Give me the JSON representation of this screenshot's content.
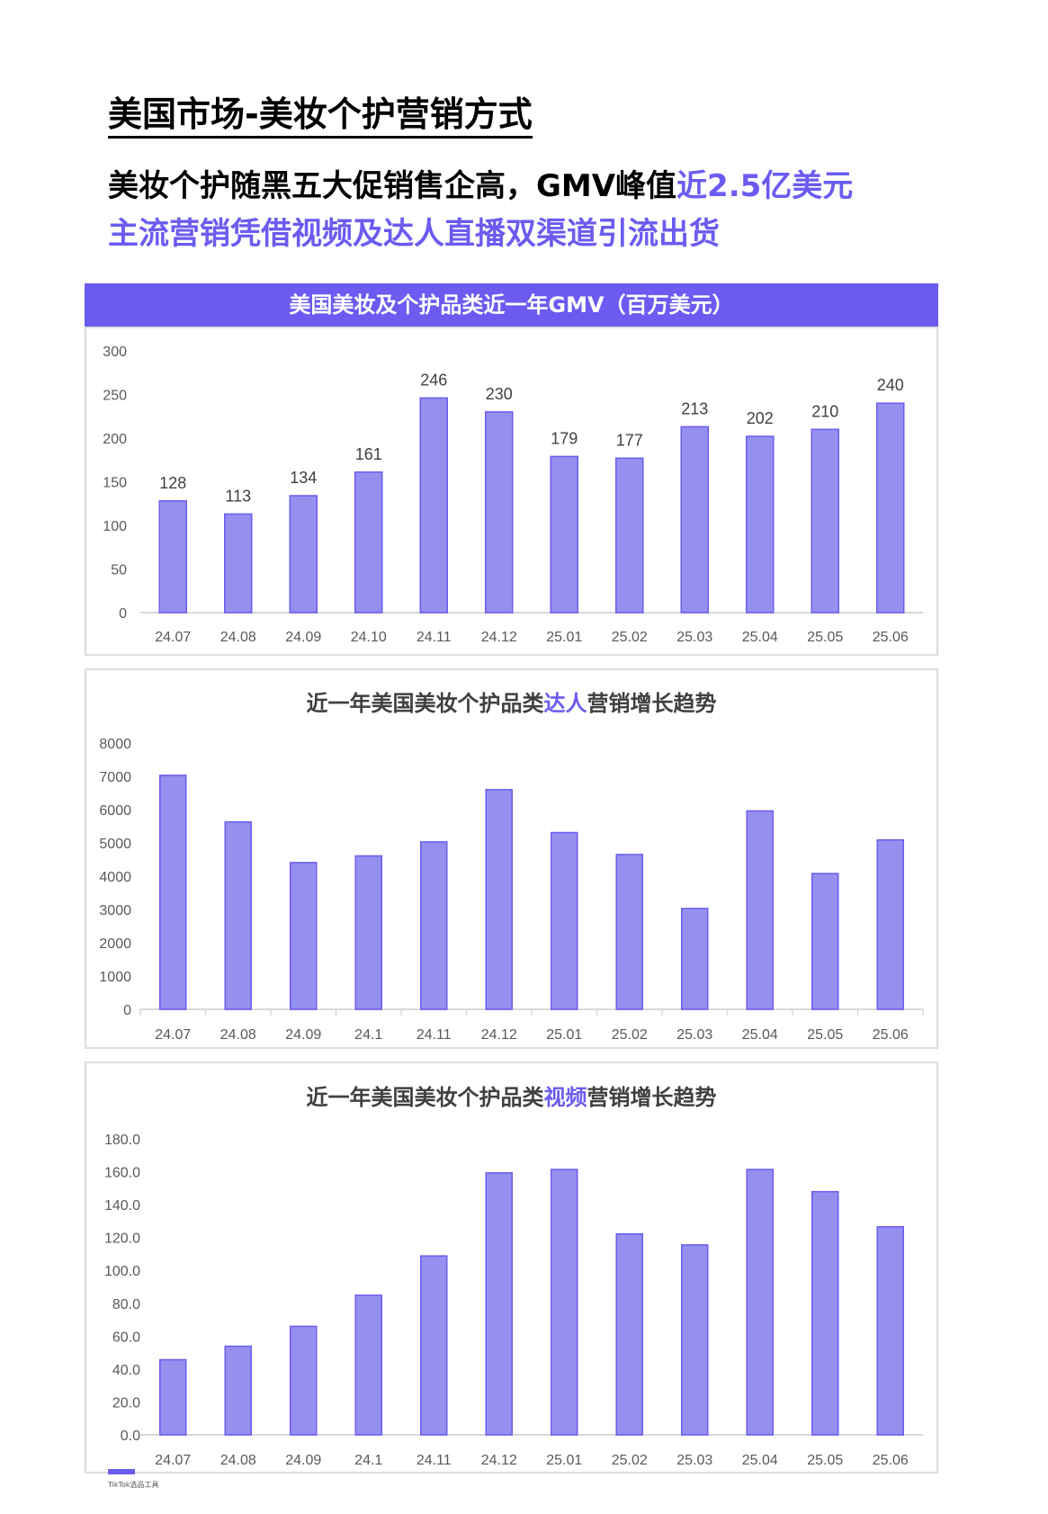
{
  "page": {
    "title": "美国市场-美妆个护营销方式",
    "headline_line1_prefix": "美妆个护随黑五大促销售企高，GMV峰值",
    "headline_line1_accent": "近2.5亿美元",
    "headline_line2": "主流营销凭借视频及达人直播双渠道引流出货",
    "footer_text": "TikTok选品工具"
  },
  "colors": {
    "accent": "#6b5bf0",
    "bar_fill": "#9590f0",
    "bar_stroke": "#6b5bf0",
    "axis": "#d9d9d9",
    "card_border": "#dcdcdc"
  },
  "cards": {
    "gmv": {
      "banner_title": "美国美妆及个护品类近一年GMV（百万美元）"
    },
    "kol": {
      "title_prefix": "近一年美国美妆个护品类",
      "title_accent": "达人",
      "title_suffix": "营销增长趋势"
    },
    "video": {
      "title_prefix": "近一年美国美妆个护品类",
      "title_accent": "视频",
      "title_suffix": "营销增长趋势"
    }
  },
  "chart_data": [
    {
      "type": "bar",
      "title": "美国美妆及个护品类近一年GMV（百万美元）",
      "xlabel": "",
      "ylabel": "",
      "categories": [
        "24.07",
        "24.08",
        "24.09",
        "24.10",
        "24.11",
        "24.12",
        "25.01",
        "25.02",
        "25.03",
        "25.04",
        "25.05",
        "25.06"
      ],
      "values": [
        128,
        113,
        134,
        161,
        246,
        230,
        179,
        177,
        213,
        202,
        210,
        240
      ],
      "data_labels": true,
      "ylim": [
        0,
        300
      ],
      "yticks": [
        0,
        50,
        100,
        150,
        200,
        250,
        300
      ],
      "grid": false,
      "legend": "none"
    },
    {
      "type": "bar",
      "title": "近一年美国美妆个护品类达人营销增长趋势",
      "xlabel": "",
      "ylabel": "",
      "categories": [
        "24.07",
        "24.08",
        "24.09",
        "24.1",
        "24.11",
        "24.12",
        "25.01",
        "25.02",
        "25.03",
        "25.04",
        "25.05",
        "25.06"
      ],
      "values": [
        7030,
        5630,
        4410,
        4610,
        5030,
        6600,
        5310,
        4650,
        3030,
        5960,
        4080,
        5090
      ],
      "data_labels": false,
      "ylim": [
        0,
        8000
      ],
      "yticks": [
        0,
        1000,
        2000,
        3000,
        4000,
        5000,
        6000,
        7000,
        8000
      ],
      "grid": false,
      "legend": "none"
    },
    {
      "type": "bar",
      "title": "近一年美国美妆个护品类视频营销增长趋势",
      "xlabel": "",
      "ylabel": "",
      "categories": [
        "24.07",
        "24.08",
        "24.09",
        "24.1",
        "24.11",
        "24.12",
        "25.01",
        "25.02",
        "25.03",
        "25.04",
        "25.05",
        "25.06"
      ],
      "values": [
        45.7,
        53.9,
        66.0,
        84.9,
        108.8,
        159.3,
        161.4,
        122.2,
        115.5,
        161.4,
        147.9,
        126.5
      ],
      "data_labels": false,
      "ylim": [
        0,
        180
      ],
      "yticks": [
        "0.0",
        "20.0",
        "40.0",
        "60.0",
        "80.0",
        "100.0",
        "120.0",
        "140.0",
        "160.0",
        "180.0"
      ],
      "grid": false,
      "legend": "none"
    }
  ]
}
